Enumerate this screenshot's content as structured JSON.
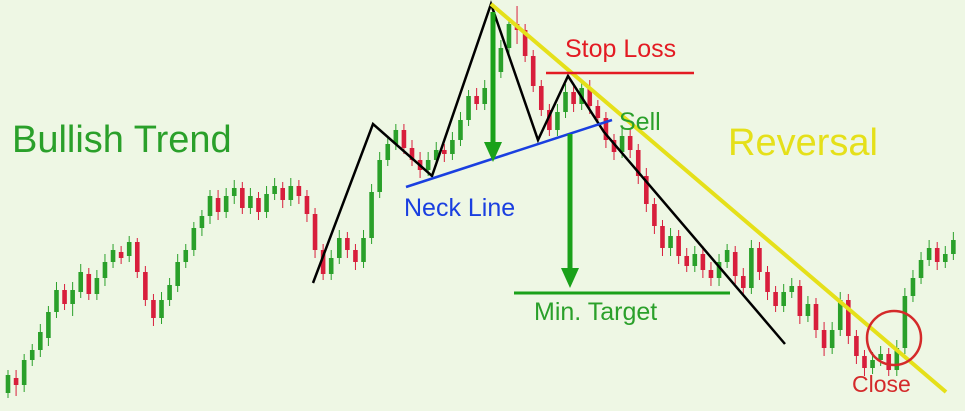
{
  "chart_data": {
    "type": "candlestick",
    "title": "",
    "xlabel": "",
    "ylabel": "",
    "grid": false,
    "ylim": [
      0,
      411
    ],
    "candles": [
      [
        0,
        393,
        375,
        398,
        370
      ],
      [
        1,
        378,
        385,
        396,
        370
      ],
      [
        2,
        385,
        360,
        392,
        354
      ],
      [
        3,
        360,
        350,
        366,
        344
      ],
      [
        4,
        350,
        332,
        357,
        324
      ],
      [
        5,
        338,
        312,
        346,
        306
      ],
      [
        6,
        312,
        290,
        318,
        282
      ],
      [
        7,
        290,
        304,
        310,
        284
      ],
      [
        8,
        304,
        290,
        316,
        282
      ],
      [
        9,
        292,
        272,
        298,
        264
      ],
      [
        10,
        274,
        294,
        300,
        268
      ],
      [
        11,
        294,
        278,
        300,
        270
      ],
      [
        12,
        278,
        262,
        286,
        254
      ],
      [
        13,
        262,
        250,
        268,
        244
      ],
      [
        14,
        252,
        258,
        264,
        246
      ],
      [
        15,
        256,
        242,
        262,
        236
      ],
      [
        16,
        242,
        272,
        278,
        238
      ],
      [
        17,
        272,
        300,
        306,
        266
      ],
      [
        18,
        300,
        318,
        326,
        294
      ],
      [
        19,
        318,
        300,
        324,
        292
      ],
      [
        20,
        300,
        285,
        306,
        278
      ],
      [
        21,
        286,
        262,
        292,
        254
      ],
      [
        22,
        262,
        250,
        268,
        244
      ],
      [
        23,
        250,
        228,
        256,
        222
      ],
      [
        24,
        228,
        216,
        236,
        210
      ],
      [
        25,
        216,
        196,
        224,
        190
      ],
      [
        26,
        198,
        212,
        220,
        190
      ],
      [
        27,
        212,
        196,
        218,
        188
      ],
      [
        28,
        196,
        188,
        204,
        180
      ],
      [
        29,
        188,
        208,
        214,
        182
      ],
      [
        30,
        208,
        196,
        214,
        188
      ],
      [
        31,
        198,
        212,
        220,
        192
      ],
      [
        32,
        212,
        194,
        218,
        186
      ],
      [
        33,
        194,
        186,
        200,
        178
      ],
      [
        34,
        188,
        200,
        208,
        182
      ],
      [
        35,
        200,
        186,
        206,
        178
      ],
      [
        36,
        186,
        196,
        204,
        180
      ],
      [
        37,
        196,
        214,
        222,
        190
      ],
      [
        38,
        214,
        250,
        258,
        208
      ],
      [
        39,
        250,
        274,
        280,
        244
      ],
      [
        40,
        274,
        258,
        280,
        250
      ],
      [
        41,
        258,
        238,
        264,
        230
      ],
      [
        42,
        238,
        250,
        258,
        232
      ],
      [
        43,
        250,
        262,
        270,
        244
      ],
      [
        44,
        262,
        238,
        268,
        230
      ],
      [
        45,
        238,
        192,
        244,
        184
      ],
      [
        46,
        192,
        160,
        198,
        152
      ],
      [
        47,
        160,
        144,
        166,
        136
      ],
      [
        48,
        144,
        130,
        150,
        124
      ],
      [
        49,
        130,
        148,
        154,
        124
      ],
      [
        50,
        148,
        160,
        166,
        140
      ],
      [
        51,
        160,
        170,
        178,
        152
      ],
      [
        52,
        170,
        160,
        176,
        152
      ],
      [
        53,
        160,
        150,
        166,
        142
      ],
      [
        54,
        150,
        154,
        162,
        144
      ],
      [
        55,
        154,
        140,
        160,
        132
      ],
      [
        56,
        140,
        120,
        146,
        112
      ],
      [
        57,
        120,
        96,
        126,
        90
      ],
      [
        58,
        96,
        104,
        110,
        88
      ],
      [
        59,
        104,
        88,
        110,
        80
      ],
      [
        60,
        88,
        72,
        94,
        66
      ],
      [
        61,
        72,
        48,
        78,
        40
      ],
      [
        62,
        48,
        24,
        54,
        18
      ],
      [
        63,
        24,
        30,
        44,
        6
      ],
      [
        64,
        30,
        56,
        62,
        24
      ],
      [
        65,
        56,
        86,
        92,
        50
      ],
      [
        66,
        86,
        110,
        116,
        80
      ],
      [
        67,
        110,
        130,
        136,
        104
      ],
      [
        68,
        130,
        112,
        136,
        104
      ],
      [
        69,
        112,
        92,
        118,
        84
      ],
      [
        70,
        92,
        104,
        112,
        86
      ],
      [
        71,
        104,
        88,
        110,
        80
      ],
      [
        72,
        88,
        106,
        114,
        80
      ],
      [
        73,
        106,
        118,
        126,
        100
      ],
      [
        74,
        118,
        140,
        148,
        112
      ],
      [
        75,
        140,
        152,
        160,
        134
      ],
      [
        76,
        152,
        136,
        158,
        128
      ],
      [
        77,
        136,
        150,
        158,
        128
      ],
      [
        78,
        150,
        176,
        184,
        144
      ],
      [
        79,
        176,
        204,
        212,
        168
      ],
      [
        80,
        204,
        226,
        234,
        198
      ],
      [
        81,
        226,
        248,
        256,
        220
      ],
      [
        82,
        248,
        236,
        256,
        228
      ],
      [
        83,
        236,
        256,
        264,
        230
      ],
      [
        84,
        256,
        266,
        272,
        248
      ],
      [
        85,
        266,
        254,
        272,
        246
      ],
      [
        86,
        254,
        270,
        278,
        246
      ],
      [
        87,
        270,
        278,
        286,
        262
      ],
      [
        88,
        278,
        262,
        286,
        254
      ],
      [
        89,
        262,
        250,
        268,
        244
      ],
      [
        90,
        252,
        276,
        284,
        246
      ],
      [
        91,
        276,
        288,
        294,
        268
      ],
      [
        92,
        288,
        248,
        294,
        240
      ],
      [
        93,
        248,
        272,
        280,
        242
      ],
      [
        94,
        272,
        292,
        300,
        266
      ],
      [
        95,
        292,
        306,
        312,
        286
      ],
      [
        96,
        306,
        292,
        312,
        284
      ],
      [
        97,
        292,
        286,
        298,
        278
      ],
      [
        98,
        286,
        316,
        324,
        280
      ],
      [
        99,
        316,
        304,
        322,
        296
      ],
      [
        100,
        304,
        330,
        338,
        298
      ],
      [
        101,
        330,
        348,
        356,
        322
      ],
      [
        102,
        348,
        330,
        354,
        322
      ],
      [
        103,
        330,
        300,
        336,
        292
      ],
      [
        104,
        300,
        336,
        344,
        294
      ],
      [
        105,
        336,
        356,
        364,
        330
      ],
      [
        106,
        356,
        368,
        376,
        350
      ],
      [
        107,
        368,
        360,
        374,
        352
      ],
      [
        108,
        360,
        354,
        366,
        346
      ],
      [
        109,
        354,
        370,
        376,
        348
      ],
      [
        110,
        370,
        348,
        376,
        340
      ],
      [
        111,
        348,
        296,
        354,
        288
      ],
      [
        112,
        296,
        278,
        302,
        270
      ],
      [
        113,
        278,
        260,
        284,
        252
      ],
      [
        114,
        260,
        248,
        266,
        240
      ],
      [
        115,
        248,
        262,
        270,
        242
      ],
      [
        116,
        262,
        254,
        268,
        246
      ],
      [
        117,
        254,
        240,
        260,
        232
      ]
    ],
    "annotations": {
      "bullish": "Bullish Trend",
      "reversal": "Reversal",
      "stop_loss": "Stop Loss",
      "sell": "Sell",
      "neck_line": "Neck Line",
      "min_target": "Min. Target",
      "close": "Close"
    },
    "colors": {
      "bull": "#2aa02a",
      "bear": "#d81e3c",
      "pattern": "#000000",
      "neck": "#1a3fe0",
      "trend": "#e5e01a",
      "arrow": "#1aa11a",
      "stop": "#e31b23",
      "background": "#eef7e4"
    }
  }
}
